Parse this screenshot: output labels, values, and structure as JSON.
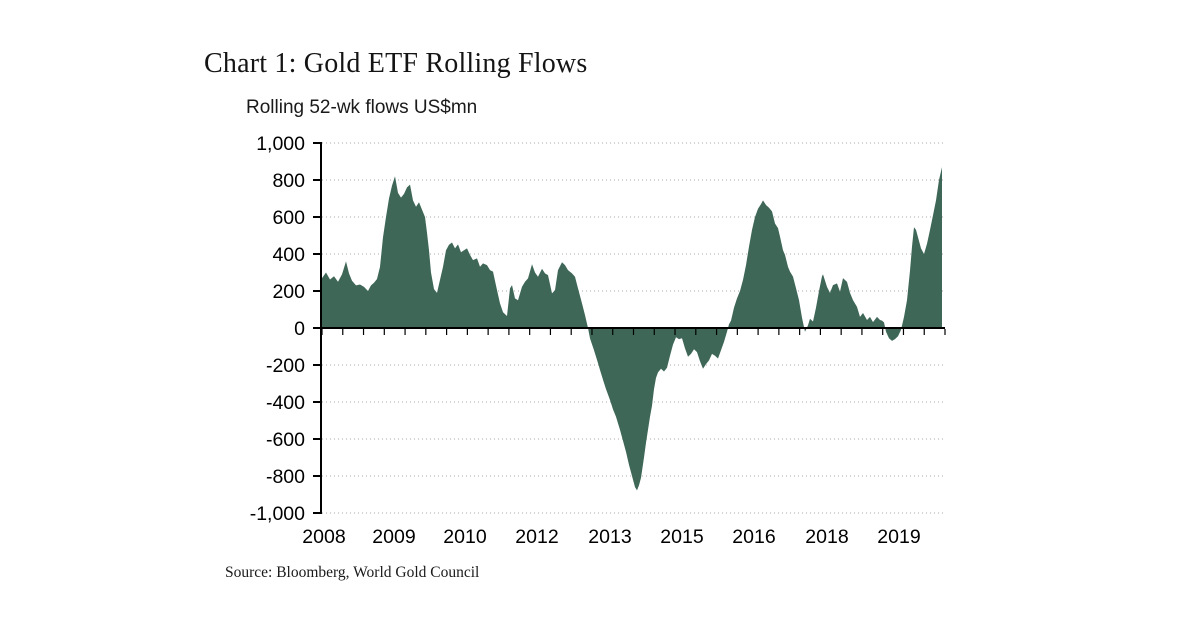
{
  "page": {
    "title": "Chart 1: Gold ETF Rolling Flows",
    "subtitle": "Rolling 52-wk flows US$mn",
    "source": "Source: Bloomberg, World Gold Council"
  },
  "chart_data": {
    "type": "area",
    "title": "Chart 1: Gold ETF Rolling Flows",
    "ylabel": "Rolling 52-wk flows US$mn",
    "xlabel": "",
    "ylim": [
      -1000,
      1000
    ],
    "grid": "horizontal-dotted",
    "legend": "none",
    "area_color": "#3E6757",
    "grid_color": "#a8a8a8",
    "axis_color": "#000000",
    "y_ticks": [
      [
        1000,
        "1,000"
      ],
      [
        800,
        "800"
      ],
      [
        600,
        "600"
      ],
      [
        400,
        "400"
      ],
      [
        200,
        "200"
      ],
      [
        0,
        "0"
      ],
      [
        -200,
        "-200"
      ],
      [
        -400,
        "-400"
      ],
      [
        -600,
        "-600"
      ],
      [
        -800,
        "-800"
      ],
      [
        -1000,
        "-1,000"
      ]
    ],
    "x_range": [
      0,
      621
    ],
    "x_tick_labels": [
      "2008",
      "2009",
      "2010",
      "2012",
      "2013",
      "2015",
      "2016",
      "2018",
      "2019"
    ],
    "x_tick_positions": [
      2,
      72,
      143,
      215,
      288,
      360,
      432,
      505,
      577
    ],
    "x_minor_tick_count": 30,
    "series": [
      {
        "name": "Rolling 52-wk flows US$mn",
        "points": [
          [
            0,
            270
          ],
          [
            4,
            300
          ],
          [
            8,
            262
          ],
          [
            12,
            280
          ],
          [
            16,
            250
          ],
          [
            20,
            290
          ],
          [
            24,
            360
          ],
          [
            27,
            295
          ],
          [
            30,
            255
          ],
          [
            34,
            230
          ],
          [
            38,
            235
          ],
          [
            42,
            222
          ],
          [
            46,
            200
          ],
          [
            49,
            230
          ],
          [
            52,
            245
          ],
          [
            55,
            265
          ],
          [
            58,
            330
          ],
          [
            61,
            490
          ],
          [
            64,
            600
          ],
          [
            67,
            700
          ],
          [
            70,
            770
          ],
          [
            73,
            820
          ],
          [
            76,
            730
          ],
          [
            79,
            705
          ],
          [
            82,
            725
          ],
          [
            85,
            760
          ],
          [
            88,
            775
          ],
          [
            91,
            690
          ],
          [
            94,
            655
          ],
          [
            97,
            680
          ],
          [
            100,
            640
          ],
          [
            103,
            600
          ],
          [
            105,
            515
          ],
          [
            107,
            420
          ],
          [
            109,
            300
          ],
          [
            112,
            210
          ],
          [
            115,
            190
          ],
          [
            118,
            260
          ],
          [
            121,
            330
          ],
          [
            124,
            420
          ],
          [
            127,
            450
          ],
          [
            130,
            462
          ],
          [
            133,
            430
          ],
          [
            136,
            452
          ],
          [
            139,
            410
          ],
          [
            142,
            420
          ],
          [
            145,
            430
          ],
          [
            148,
            395
          ],
          [
            151,
            367
          ],
          [
            155,
            376
          ],
          [
            158,
            331
          ],
          [
            161,
            349
          ],
          [
            165,
            340
          ],
          [
            168,
            313
          ],
          [
            171,
            305
          ],
          [
            175,
            205
          ],
          [
            178,
            133
          ],
          [
            181,
            85
          ],
          [
            185,
            65
          ],
          [
            188,
            214
          ],
          [
            190,
            232
          ],
          [
            193,
            160
          ],
          [
            196,
            150
          ],
          [
            200,
            223
          ],
          [
            203,
            250
          ],
          [
            206,
            268
          ],
          [
            210,
            345
          ],
          [
            213,
            300
          ],
          [
            216,
            277
          ],
          [
            220,
            320
          ],
          [
            223,
            295
          ],
          [
            226,
            286
          ],
          [
            230,
            187
          ],
          [
            233,
            205
          ],
          [
            236,
            313
          ],
          [
            240,
            355
          ],
          [
            243,
            340
          ],
          [
            246,
            313
          ],
          [
            250,
            295
          ],
          [
            253,
            277
          ],
          [
            256,
            214
          ],
          [
            260,
            133
          ],
          [
            263,
            70
          ],
          [
            266,
            0
          ],
          [
            268,
            -56
          ],
          [
            272,
            -120
          ],
          [
            276,
            -190
          ],
          [
            278,
            -227
          ],
          [
            281,
            -280
          ],
          [
            284,
            -330
          ],
          [
            288,
            -389
          ],
          [
            291,
            -440
          ],
          [
            294,
            -480
          ],
          [
            298,
            -551
          ],
          [
            301,
            -610
          ],
          [
            304,
            -670
          ],
          [
            307,
            -740
          ],
          [
            310,
            -800
          ],
          [
            313,
            -860
          ],
          [
            315,
            -878
          ],
          [
            317,
            -850
          ],
          [
            319,
            -810
          ],
          [
            322,
            -700
          ],
          [
            324,
            -620
          ],
          [
            326,
            -550
          ],
          [
            328,
            -480
          ],
          [
            330,
            -420
          ],
          [
            332,
            -330
          ],
          [
            334,
            -270
          ],
          [
            336,
            -240
          ],
          [
            339,
            -220
          ],
          [
            342,
            -235
          ],
          [
            345,
            -215
          ],
          [
            348,
            -150
          ],
          [
            351,
            -90
          ],
          [
            354,
            -50
          ],
          [
            357,
            -60
          ],
          [
            360,
            -55
          ],
          [
            363,
            -110
          ],
          [
            366,
            -155
          ],
          [
            369,
            -140
          ],
          [
            372,
            -115
          ],
          [
            375,
            -130
          ],
          [
            378,
            -180
          ],
          [
            381,
            -220
          ],
          [
            384,
            -195
          ],
          [
            387,
            -175
          ],
          [
            390,
            -140
          ],
          [
            393,
            -150
          ],
          [
            396,
            -165
          ],
          [
            399,
            -120
          ],
          [
            402,
            -75
          ],
          [
            405,
            -20
          ],
          [
            407,
            20
          ],
          [
            409,
            40
          ],
          [
            412,
            110
          ],
          [
            415,
            160
          ],
          [
            418,
            200
          ],
          [
            421,
            260
          ],
          [
            424,
            340
          ],
          [
            427,
            440
          ],
          [
            430,
            530
          ],
          [
            433,
            600
          ],
          [
            436,
            645
          ],
          [
            439,
            670
          ],
          [
            441,
            690
          ],
          [
            444,
            665
          ],
          [
            447,
            650
          ],
          [
            450,
            630
          ],
          [
            453,
            565
          ],
          [
            456,
            540
          ],
          [
            458,
            494
          ],
          [
            461,
            420
          ],
          [
            463,
            395
          ],
          [
            466,
            330
          ],
          [
            468,
            305
          ],
          [
            471,
            278
          ],
          [
            474,
            215
          ],
          [
            477,
            151
          ],
          [
            480,
            55
          ],
          [
            483,
            -20
          ],
          [
            486,
            15
          ],
          [
            488,
            50
          ],
          [
            491,
            35
          ],
          [
            494,
            110
          ],
          [
            497,
            200
          ],
          [
            500,
            280
          ],
          [
            501,
            290
          ],
          [
            505,
            222
          ],
          [
            508,
            190
          ],
          [
            511,
            232
          ],
          [
            515,
            241
          ],
          [
            518,
            197
          ],
          [
            521,
            270
          ],
          [
            525,
            249
          ],
          [
            528,
            190
          ],
          [
            531,
            151
          ],
          [
            535,
            114
          ],
          [
            538,
            60
          ],
          [
            541,
            81
          ],
          [
            545,
            43
          ],
          [
            548,
            60
          ],
          [
            551,
            32
          ],
          [
            555,
            60
          ],
          [
            558,
            43
          ],
          [
            560,
            40
          ],
          [
            562,
            30
          ],
          [
            564,
            -20
          ],
          [
            567,
            -55
          ],
          [
            570,
            -70
          ],
          [
            573,
            -60
          ],
          [
            576,
            -45
          ],
          [
            579,
            -10
          ],
          [
            582,
            60
          ],
          [
            585,
            150
          ],
          [
            588,
            310
          ],
          [
            590,
            440
          ],
          [
            592,
            545
          ],
          [
            594,
            530
          ],
          [
            596,
            490
          ],
          [
            599,
            430
          ],
          [
            602,
            400
          ],
          [
            605,
            455
          ],
          [
            608,
            530
          ],
          [
            611,
            610
          ],
          [
            614,
            690
          ],
          [
            617,
            800
          ],
          [
            620,
            870
          ]
        ]
      }
    ]
  }
}
